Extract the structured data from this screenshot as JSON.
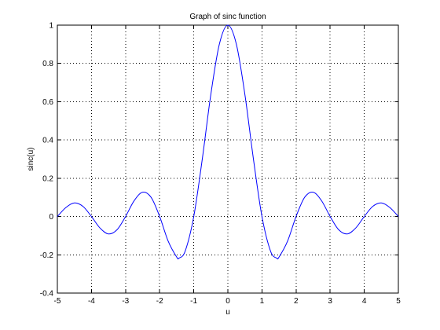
{
  "chart_data": {
    "type": "line",
    "title": "Graph of sinc function",
    "xlabel": "u",
    "ylabel": "sinc(u)",
    "xlim": [
      -5,
      5
    ],
    "ylim": [
      -0.4,
      1
    ],
    "xticks": [
      "-5",
      "-4",
      "-3",
      "-2",
      "-1",
      "0",
      "1",
      "2",
      "3",
      "4",
      "5"
    ],
    "yticks": [
      "-0.4",
      "-0.2",
      "0",
      "0.2",
      "0.4",
      "0.6",
      "0.8",
      "1"
    ],
    "grid": true,
    "series_color": "#0000ff",
    "x": [
      -5,
      -4.75,
      -4.5,
      -4.25,
      -4,
      -3.75,
      -3.5,
      -3.25,
      -3,
      -2.75,
      -2.5,
      -2.25,
      -2,
      -1.75,
      -1.5,
      -1.43,
      -1.25,
      -1,
      -0.75,
      -0.5,
      -0.25,
      0,
      0.25,
      0.5,
      0.75,
      1,
      1.25,
      1.43,
      1.5,
      1.75,
      2,
      2.25,
      2.5,
      2.75,
      3,
      3.25,
      3.5,
      3.75,
      4,
      4.25,
      4.5,
      4.75,
      5
    ],
    "y": [
      0,
      0.047,
      0.071,
      0.053,
      0,
      -0.06,
      -0.091,
      -0.069,
      0,
      0.082,
      0.127,
      0.1,
      0,
      -0.129,
      -0.212,
      -0.217,
      -0.18,
      0,
      0.3,
      0.637,
      0.9,
      1,
      0.9,
      0.637,
      0.3,
      0,
      -0.18,
      -0.217,
      -0.212,
      -0.129,
      0,
      0.1,
      0.127,
      0.082,
      0,
      -0.069,
      -0.091,
      -0.06,
      0,
      0.053,
      0.071,
      0.047,
      0
    ]
  }
}
